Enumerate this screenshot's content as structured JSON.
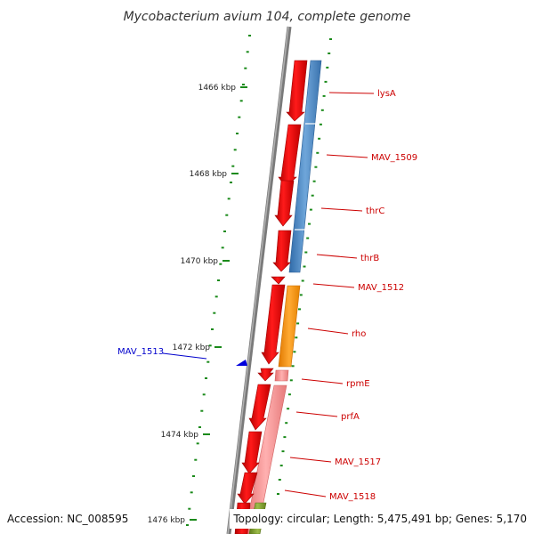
{
  "title": "Mycobacterium avium 104, complete genome",
  "footer": {
    "accession": "Accession: NC_008595",
    "topology": "Topology: circular; Length: 5,475,491 bp; Genes: 5,170"
  },
  "ruler": {
    "ticks": [
      "1466 kbp",
      "1468 kbp",
      "1470 kbp",
      "1472 kbp",
      "1474 kbp",
      "1476 kbp"
    ]
  },
  "genes": [
    {
      "name": "lysA",
      "strand": "forward"
    },
    {
      "name": "MAV_1509",
      "strand": "forward"
    },
    {
      "name": "thrC",
      "strand": "forward"
    },
    {
      "name": "thrB",
      "strand": "forward"
    },
    {
      "name": "MAV_1512",
      "strand": "forward"
    },
    {
      "name": "MAV_1513",
      "strand": "reverse"
    },
    {
      "name": "rho",
      "strand": "forward"
    },
    {
      "name": "rpmE",
      "strand": "forward"
    },
    {
      "name": "prfA",
      "strand": "forward"
    },
    {
      "name": "MAV_1517",
      "strand": "forward"
    },
    {
      "name": "MAV_1518",
      "strand": "forward"
    }
  ],
  "colors": {
    "backbone": "#888888",
    "cds": "#ff0000",
    "blue_track": "#4a84c0",
    "orange_track": "#ff8c00",
    "pink_track": "#f28b8b",
    "olive_track": "#7a9a2a",
    "ticks": "#1a8a1a",
    "label_forward": "#cc0000",
    "label_reverse": "#0000cc"
  }
}
